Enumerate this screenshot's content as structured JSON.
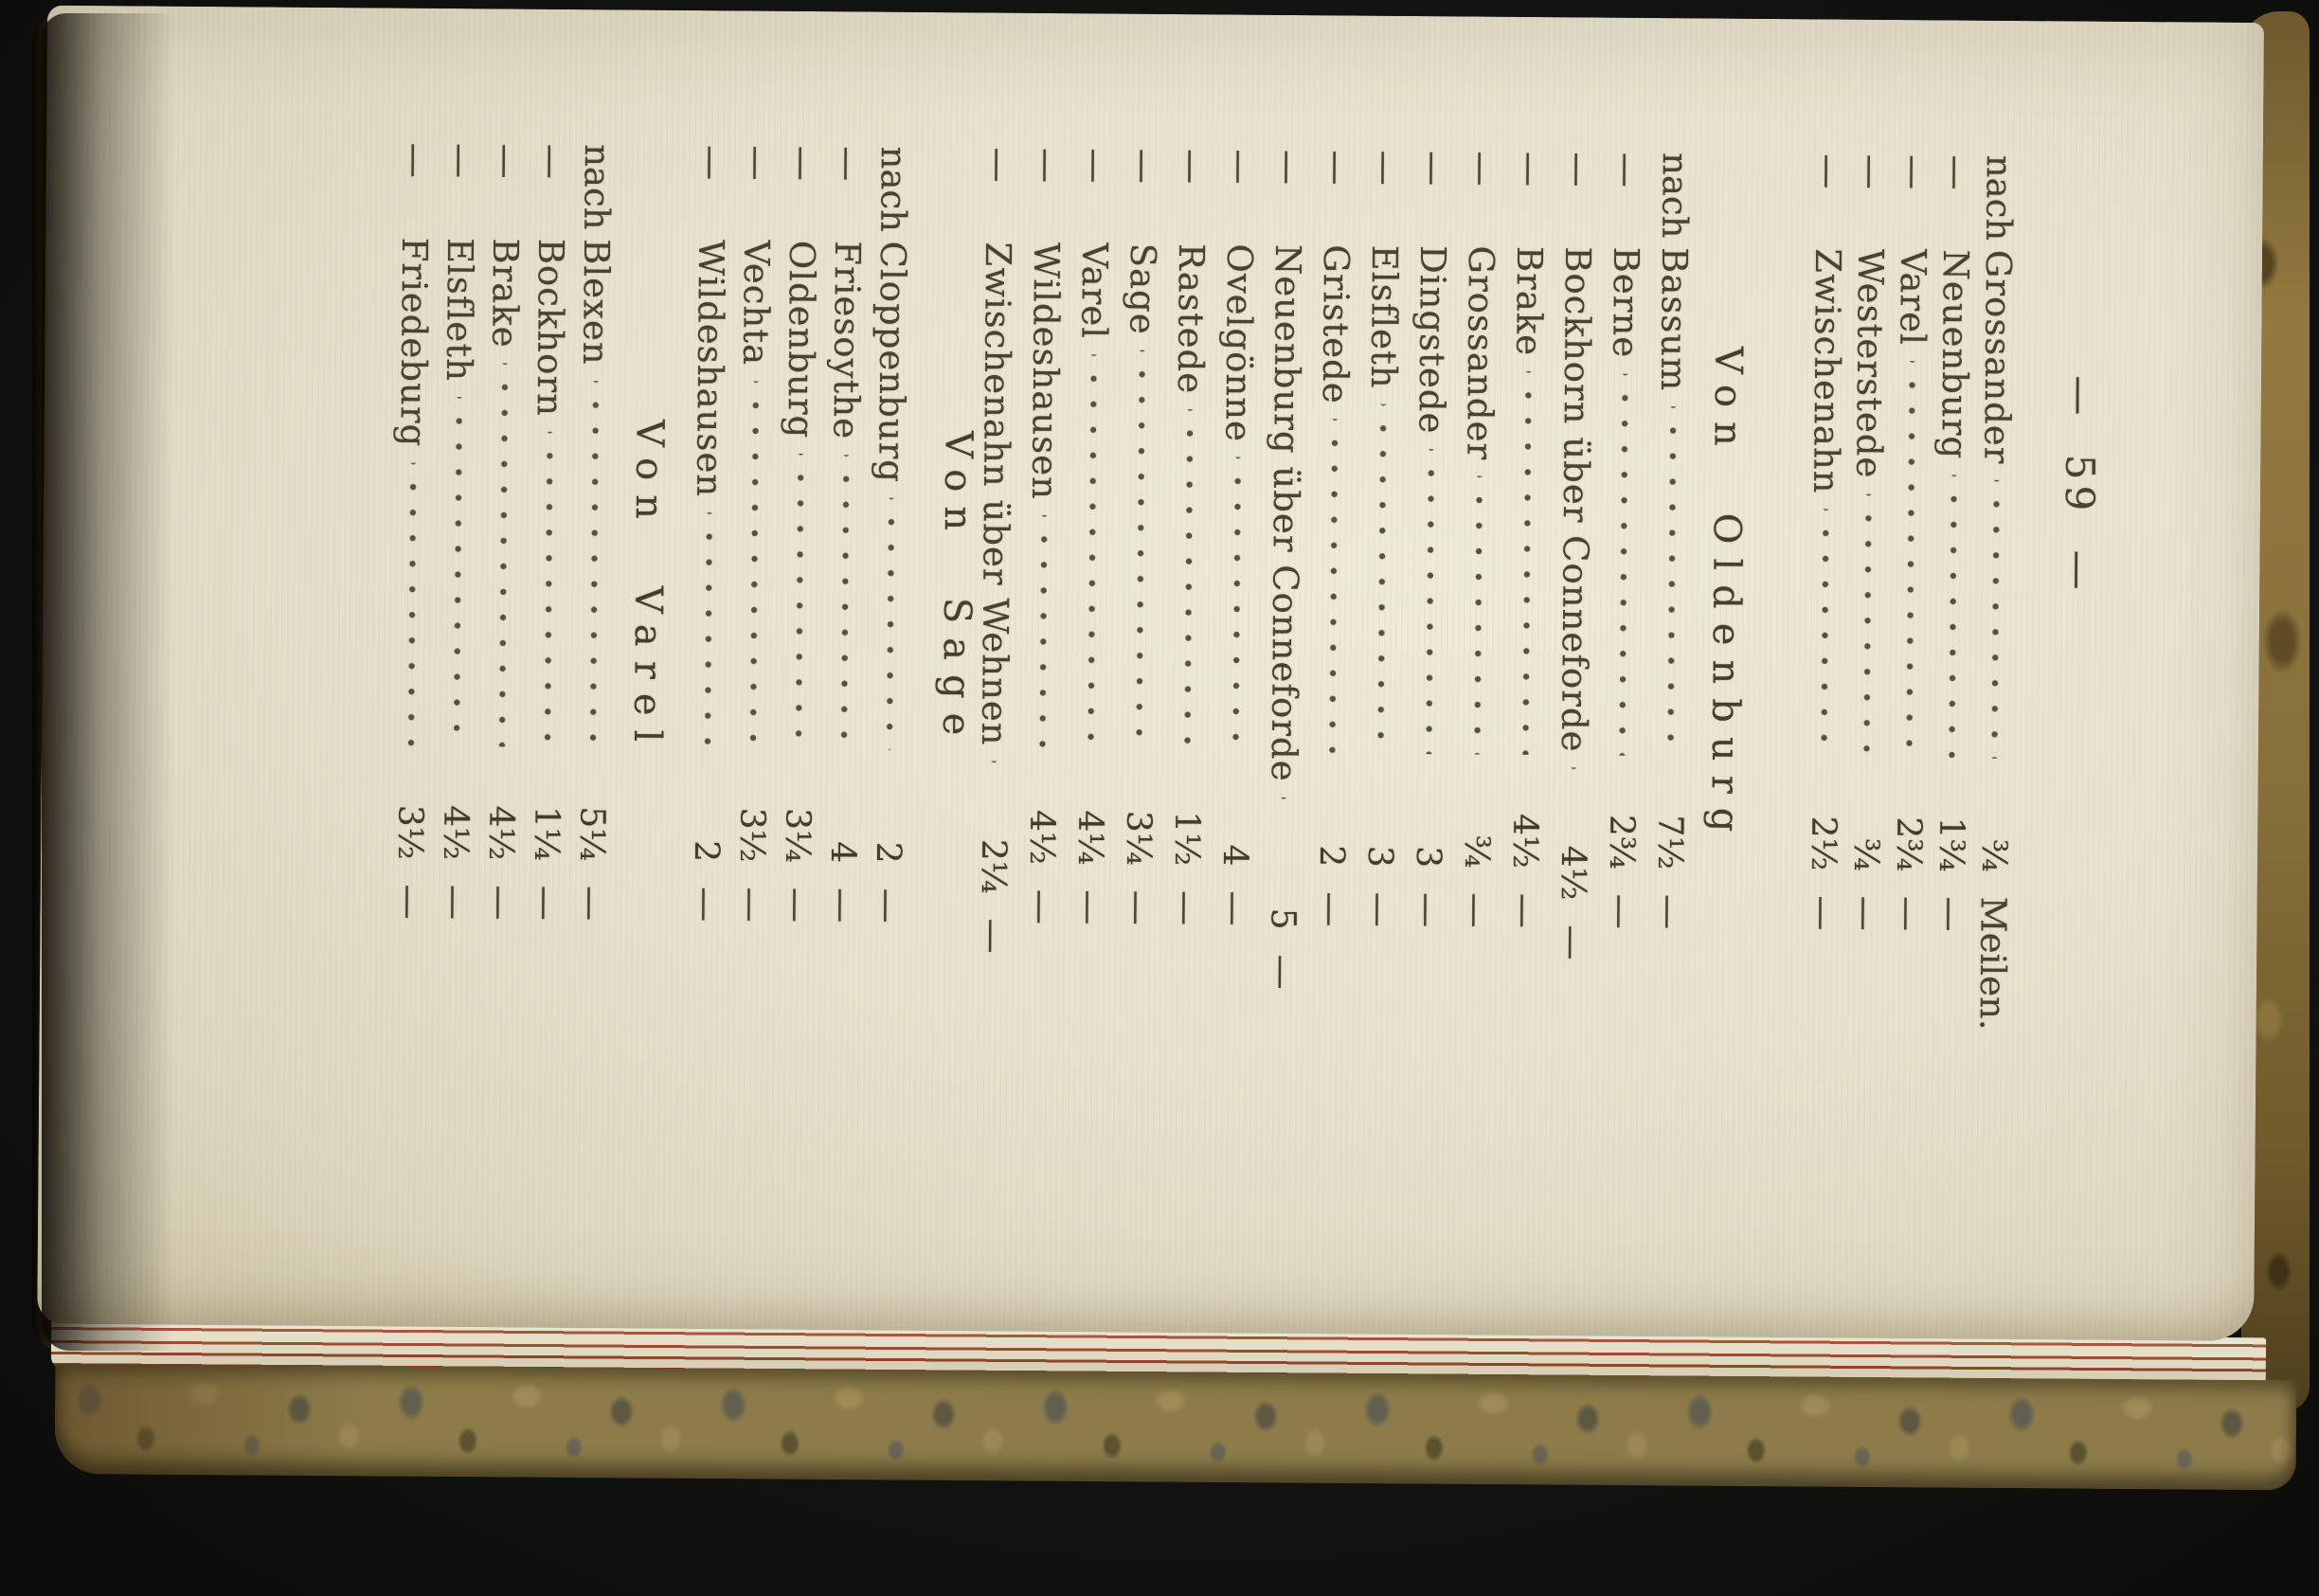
{
  "book_page": {
    "page_number": "— 59 —",
    "unit_header": "Meilen.",
    "ditto_mark": "—",
    "groups": [
      {
        "header": "",
        "rows": [
          {
            "prefix": "nach",
            "name": "Grossander",
            "value": "¾",
            "unit": "Meilen."
          },
          {
            "prefix": "—",
            "name": "Neuenburg",
            "value": "1¾",
            "unit": "—"
          },
          {
            "prefix": "—",
            "name": "Varel",
            "value": "2¾",
            "unit": "—"
          },
          {
            "prefix": "—",
            "name": "Westerstede",
            "value": "¾",
            "unit": "—"
          },
          {
            "prefix": "—",
            "name": "Zwischenahn",
            "value": "2½",
            "unit": "—"
          }
        ]
      },
      {
        "header": "Von Oldenburg",
        "rows": [
          {
            "prefix": "nach",
            "name": "Bassum",
            "value": "7½",
            "unit": "—"
          },
          {
            "prefix": "—",
            "name": "Berne",
            "value": "2¾",
            "unit": "—"
          },
          {
            "prefix": "—",
            "name": "Bockhorn über Conneforde",
            "value": "4½",
            "unit": "—"
          },
          {
            "prefix": "—",
            "name": "Brake",
            "value": "4½",
            "unit": "—"
          },
          {
            "prefix": "—",
            "name": "Grossander",
            "value": "¾",
            "unit": "—"
          },
          {
            "prefix": "—",
            "name": "Dingstede",
            "value": "3",
            "unit": "—"
          },
          {
            "prefix": "—",
            "name": "Elsfleth",
            "value": "3",
            "unit": "—"
          },
          {
            "prefix": "—",
            "name": "Gristede",
            "value": "2",
            "unit": "—"
          },
          {
            "prefix": "—",
            "name": "Neuenburg über Conneforde",
            "value": "5",
            "unit": "—"
          },
          {
            "prefix": "—",
            "name": "Ovelgönne",
            "value": "4",
            "unit": "—"
          },
          {
            "prefix": "—",
            "name": "Rastede",
            "value": "1½",
            "unit": "—"
          },
          {
            "prefix": "—",
            "name": "Sage",
            "value": "3¼",
            "unit": "—"
          },
          {
            "prefix": "—",
            "name": "Varel",
            "value": "4¼",
            "unit": "—"
          },
          {
            "prefix": "—",
            "name": "Wildeshausen",
            "value": "4½",
            "unit": "—"
          },
          {
            "prefix": "—",
            "name": "Zwischenahn über Wehnen",
            "value": "2¼",
            "unit": "—"
          }
        ]
      },
      {
        "header": "Von Sage",
        "rows": [
          {
            "prefix": "nach",
            "name": "Cloppenburg",
            "value": "2",
            "unit": "—"
          },
          {
            "prefix": "—",
            "name": "Friesoythe",
            "value": "4",
            "unit": "—"
          },
          {
            "prefix": "—",
            "name": "Oldenburg",
            "value": "3¼",
            "unit": "—"
          },
          {
            "prefix": "—",
            "name": "Vechta",
            "value": "3½",
            "unit": "—"
          },
          {
            "prefix": "—",
            "name": "Wildeshausen",
            "value": "2",
            "unit": "—"
          }
        ]
      },
      {
        "header": "Von Varel",
        "rows": [
          {
            "prefix": "nach",
            "name": "Blexen",
            "value": "5¼",
            "unit": "—"
          },
          {
            "prefix": "—",
            "name": "Bockhorn",
            "value": "1¼",
            "unit": "—"
          },
          {
            "prefix": "—",
            "name": "Brake",
            "value": "4½",
            "unit": "—"
          },
          {
            "prefix": "—",
            "name": "Elsfleth",
            "value": "4½",
            "unit": "—"
          },
          {
            "prefix": "—",
            "name": "Friedeburg",
            "value": "3½",
            "unit": "—"
          }
        ]
      }
    ],
    "colors": {
      "paper": "#e9e4d2",
      "ink": "#49422f",
      "marbled_board": "#8d7c4a",
      "sprinkled_edge_red": "#9c4c30",
      "background": "#141412"
    }
  }
}
